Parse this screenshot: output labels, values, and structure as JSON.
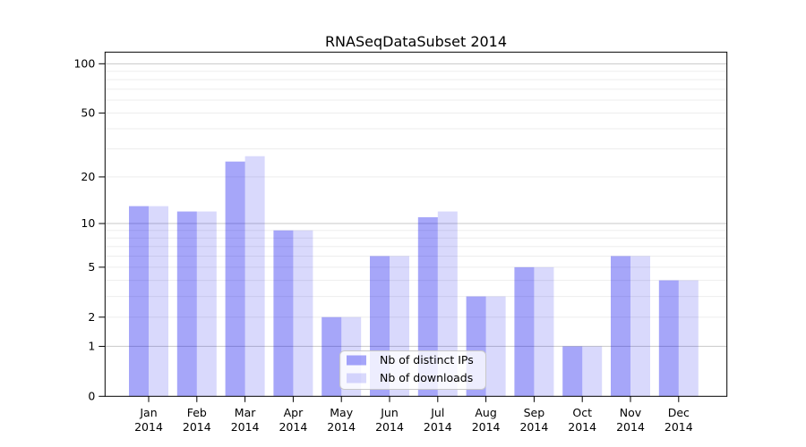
{
  "chart_data": {
    "type": "bar",
    "title": "RNASeqDataSubset 2014",
    "categories": [
      "Jan",
      "Feb",
      "Mar",
      "Apr",
      "May",
      "Jun",
      "Jul",
      "Aug",
      "Sep",
      "Oct",
      "Nov",
      "Dec"
    ],
    "category_sublabel": "2014",
    "series": [
      {
        "name": "Nb of distinct IPs",
        "color": "#0000ee",
        "opacity": 0.35,
        "rendered_color": "#a6a6f9",
        "values": [
          13,
          12,
          25,
          9,
          2,
          6,
          11,
          3,
          5,
          1,
          6,
          4
        ]
      },
      {
        "name": "Nb of downloads",
        "color": "#0000ee",
        "opacity": 0.15,
        "rendered_color": "#d9d9fc",
        "values": [
          13,
          12,
          27,
          9,
          2,
          6,
          12,
          3,
          5,
          1,
          6,
          4
        ]
      }
    ],
    "xlabel": "",
    "ylabel": "",
    "yscale": "log1p",
    "ylim": [
      0,
      117
    ],
    "yticks": [
      0,
      1,
      2,
      5,
      10,
      20,
      50,
      100
    ],
    "grid": true,
    "major_gridlines": [
      1,
      10,
      100
    ],
    "minor_gridlines": [
      2,
      3,
      4,
      5,
      6,
      7,
      8,
      9,
      20,
      30,
      40,
      50,
      60,
      70,
      80,
      90
    ],
    "legend_position": "lower center",
    "colors": {
      "major_grid": "#c9c9c9",
      "minor_grid": "#ededed",
      "spine": "#000000",
      "legend_border": "#c8c8c8",
      "legend_background": "rgba(255,255,255,0.8)",
      "text": "#000000"
    }
  }
}
